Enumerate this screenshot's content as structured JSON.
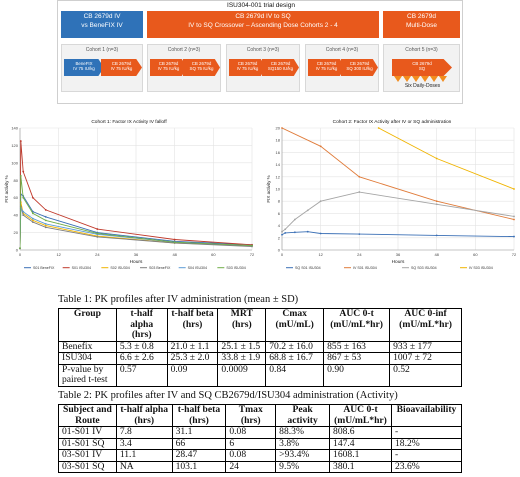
{
  "design": {
    "title": "ISU304-001 trial design",
    "headers": [
      {
        "l1": "CB 2679d IV",
        "l2": "vs BeneFIX IV",
        "color": "#2f72b8"
      },
      {
        "l1": "CB 2679d IV to SQ",
        "l2": "IV to SQ Crossover – Ascending Dose Cohorts 2 - 4",
        "color": "#e8591c"
      },
      {
        "l1": "CB 2679d",
        "l2": "Multi-Dose",
        "color": "#e8591c"
      }
    ],
    "cohorts": [
      {
        "label": "Cohort 1 (n=3)",
        "arrows": [
          {
            "l1": "BeneFIX",
            "l2": "IV 75 IU/kg"
          },
          {
            "l1": "CB 2679d",
            "l2": "IV 75 IU/kg"
          }
        ]
      },
      {
        "label": "Cohort 2 (n=3)",
        "arrows": [
          {
            "l1": "CB 2679d",
            "l2": "IV 75 IU/kg"
          },
          {
            "l1": "CB 2679d",
            "l2": "SQ 75 IU/kg"
          }
        ]
      },
      {
        "label": "Cohort 3 (n=3)",
        "arrows": [
          {
            "l1": "CB 2679d",
            "l2": "IV 75 IU/kg"
          },
          {
            "l1": "CB 2679d",
            "l2": "SQ150 IU/kg"
          }
        ]
      },
      {
        "label": "Cohort 4 (n=3)",
        "arrows": [
          {
            "l1": "CB 2679d",
            "l2": "IV 75 IU/kg"
          },
          {
            "l1": "CB 2679d",
            "l2": "SQ 300 IU/kg"
          }
        ]
      },
      {
        "label": "Cohort 5 (n=3)",
        "arrows": [
          {
            "l1": "CB 2679d",
            "l2": "SQ"
          }
        ]
      }
    ],
    "six_daily": "Six Daily-Doses"
  },
  "chart_data": [
    {
      "type": "line",
      "title": "Cohort 1: Factor IX Activity  IV falloff",
      "xlabel": "Hours",
      "ylabel": "FIX activity %",
      "xlim": [
        0,
        72
      ],
      "ylim": [
        0,
        140
      ],
      "x_ticks": [
        0,
        12,
        24,
        36,
        48,
        60,
        72
      ],
      "y_ticks": [
        0,
        20,
        40,
        60,
        80,
        100,
        120,
        140
      ],
      "series": [
        {
          "name": "S01 BeneFIX",
          "color": "#3a6fb5",
          "x": [
            0,
            0.25,
            1,
            4,
            8,
            24,
            48,
            72
          ],
          "y": [
            2,
            64,
            62,
            44,
            38,
            20,
            10,
            6
          ]
        },
        {
          "name": "S01 ISU304",
          "color": "#c0392b",
          "x": [
            0,
            0.25,
            1,
            4,
            8,
            24,
            48,
            72
          ],
          "y": [
            2,
            125,
            90,
            60,
            46,
            24,
            12,
            6
          ]
        },
        {
          "name": "S02 ISU304",
          "color": "#f0b400",
          "x": [
            0,
            0.25,
            1,
            4,
            8,
            24,
            48,
            72
          ],
          "y": [
            2,
            55,
            42,
            34,
            28,
            16,
            8,
            5
          ]
        },
        {
          "name": "S03 BeneFIX",
          "color": "#7f7f7f",
          "x": [
            0,
            0.25,
            1,
            4,
            8,
            24,
            48,
            72
          ],
          "y": [
            2,
            50,
            40,
            32,
            26,
            15,
            8,
            4
          ]
        },
        {
          "name": "S04 ISU304",
          "color": "#5b9bd5",
          "x": [
            0,
            0.25,
            1,
            4,
            8,
            24,
            48,
            72
          ],
          "y": [
            2,
            48,
            44,
            36,
            30,
            18,
            9,
            5
          ]
        },
        {
          "name": "S03 ISU304",
          "color": "#70ad47",
          "x": [
            0,
            0.25,
            1,
            4,
            8,
            24,
            48,
            72
          ],
          "y": [
            2,
            85,
            60,
            42,
            34,
            19,
            9,
            5
          ]
        }
      ]
    },
    {
      "type": "line",
      "title": "Cohort 2: Factor IX Activity after IV or SQ administration",
      "xlabel": "Hours",
      "ylabel": "FIX activity %",
      "xlim": [
        0,
        72
      ],
      "ylim": [
        0,
        20
      ],
      "x_ticks": [
        0,
        12,
        24,
        36,
        48,
        60,
        72
      ],
      "y_ticks": [
        0,
        2,
        4,
        6,
        8,
        10,
        12,
        14,
        16,
        18,
        20
      ],
      "series": [
        {
          "name": "SQ S01 ISU304",
          "color": "#3a6fb5",
          "x": [
            0,
            1,
            4,
            8,
            12,
            24,
            48,
            72
          ],
          "y": [
            2.5,
            2.8,
            2.9,
            3.0,
            2.7,
            2.6,
            2.4,
            2.2
          ]
        },
        {
          "name": "IV S01 ISU304",
          "color": "#e07b39",
          "x": [
            0,
            12,
            24,
            48,
            72
          ],
          "y": [
            20,
            17,
            12,
            8,
            5
          ]
        },
        {
          "name": "SQ S03 ISU304",
          "color": "#a5a5a5",
          "x": [
            0,
            1,
            4,
            8,
            12,
            24,
            48,
            72
          ],
          "y": [
            3.0,
            3.4,
            5.0,
            6.5,
            8.0,
            9.5,
            7.5,
            5.5
          ]
        },
        {
          "name": "IV S03 ISU304",
          "color": "#f0b400",
          "x": [
            30,
            48,
            72
          ],
          "y": [
            20,
            15,
            10
          ]
        }
      ]
    }
  ],
  "table1": {
    "caption": "Table 1: PK profiles after IV administration (mean ± SD)",
    "headers": [
      "Group",
      "t-half alpha (hrs)",
      "t-half beta (hrs)",
      "MRT (hrs)",
      "Cmax (mU/mL)",
      "AUC 0-t (mU/mL*hr)",
      "AUC 0-inf (mU/mL*hr)"
    ],
    "rows": [
      [
        "Benefix",
        "5.3 ± 0.8",
        "21.0 ± 1.1",
        "25.1 ± 1.5",
        "70.2 ± 16.0",
        "855 ± 163",
        "933 ± 177"
      ],
      [
        "ISU304",
        "6.6 ± 2.6",
        "25.3 ± 2.0",
        "33.8 ± 1.9",
        "68.8 ± 16.7",
        "867 ± 53",
        "1007 ± 72"
      ],
      [
        "P-value by paired t-test",
        "0.57",
        "0.09",
        "0.0009",
        "0.84",
        "0.90",
        "0.52"
      ]
    ]
  },
  "table2": {
    "caption": "Table 2: PK profiles after IV and SQ CB2679d/ISU304 administration (Activity)",
    "headers": [
      "Subject and Route",
      "t-half alpha (hrs)",
      "t-half beta (hrs)",
      "Tmax (hrs)",
      "Peak activity",
      "AUC 0-t (mU/mL*hr)",
      "Bioavailability"
    ],
    "rows": [
      [
        "01-S01 IV",
        "7.8",
        "31.1",
        "0.08",
        "88.3%",
        "808.6",
        "-"
      ],
      [
        "01-S01 SQ",
        "3.4",
        "66",
        "6",
        "3.8%",
        "147.4",
        "18.2%"
      ],
      [
        "03-S01 IV",
        "11.1",
        "28.47",
        "0.08",
        ">93.4%",
        "1608.1",
        "-"
      ],
      [
        "03-S01 SQ",
        "NA",
        "103.1",
        "24",
        "9.5%",
        "380.1",
        "23.6%"
      ]
    ]
  }
}
